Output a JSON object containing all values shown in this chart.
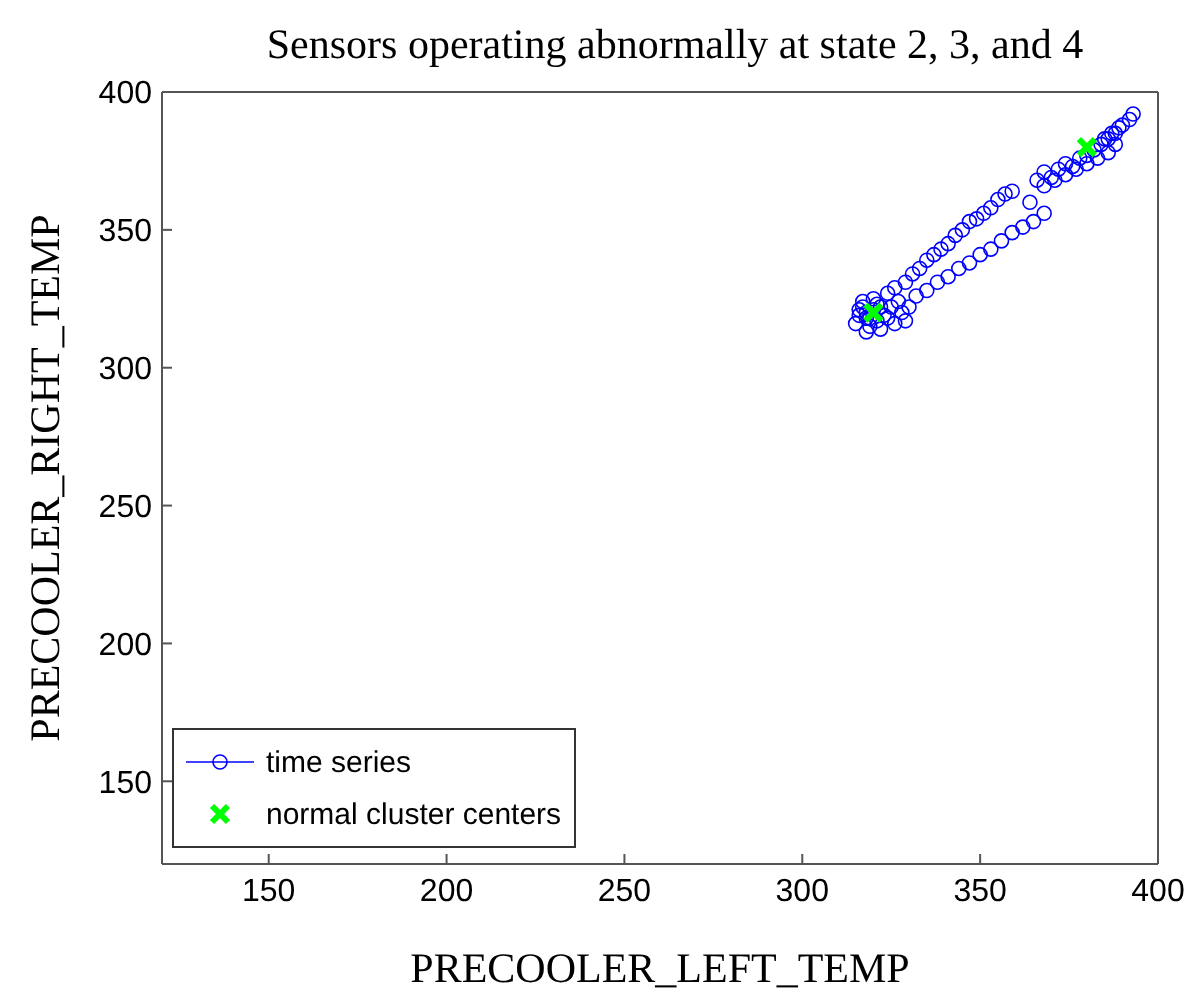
{
  "chart_data": {
    "type": "scatter",
    "title": "Sensors operating abnormally at state 2, 3, and 4",
    "xlabel": "PRECOOLER_LEFT_TEMP",
    "ylabel": "PRECOOLER_RIGHT_TEMP",
    "xlim": [
      120,
      400
    ],
    "ylim": [
      120,
      400
    ],
    "xticks": [
      150,
      200,
      250,
      300,
      350,
      400
    ],
    "yticks": [
      150,
      200,
      250,
      300,
      350,
      400
    ],
    "grid": false,
    "legend": "bottom left",
    "series": [
      {
        "name": "time series",
        "color": "#0000ff",
        "marker": "circle",
        "x": [
          315,
          316,
          317,
          318,
          319,
          320,
          321,
          322,
          323,
          318,
          317,
          319,
          321,
          324,
          325,
          326,
          327,
          328,
          329,
          330,
          322,
          320,
          318,
          316,
          324,
          326,
          329,
          331,
          333,
          335,
          337,
          339,
          341,
          343,
          345,
          347,
          349,
          351,
          353,
          355,
          357,
          359,
          332,
          335,
          338,
          341,
          344,
          347,
          350,
          353,
          356,
          359,
          362,
          365,
          368,
          364,
          366,
          368,
          370,
          372,
          374,
          376,
          378,
          380,
          382,
          384,
          386,
          388,
          368,
          371,
          374,
          377,
          380,
          383,
          386,
          388,
          390,
          392,
          393,
          385,
          387,
          389
        ],
        "values": [
          316,
          319,
          322,
          320,
          318,
          321,
          317,
          322,
          319,
          313,
          324,
          315,
          323,
          318,
          322,
          316,
          324,
          320,
          317,
          322,
          314,
          325,
          318,
          321,
          327,
          329,
          331,
          334,
          336,
          339,
          341,
          343,
          345,
          348,
          350,
          353,
          354,
          356,
          358,
          361,
          363,
          364,
          326,
          328,
          331,
          333,
          336,
          338,
          341,
          343,
          346,
          349,
          351,
          353,
          356,
          360,
          368,
          371,
          369,
          372,
          374,
          373,
          376,
          377,
          379,
          381,
          383,
          385,
          366,
          368,
          370,
          372,
          374,
          376,
          378,
          381,
          388,
          390,
          392,
          383,
          385,
          387
        ]
      },
      {
        "name": "normal cluster centers",
        "color": "#00ff00",
        "marker": "cross",
        "x": [
          320,
          380
        ],
        "values": [
          320,
          380
        ]
      }
    ]
  }
}
